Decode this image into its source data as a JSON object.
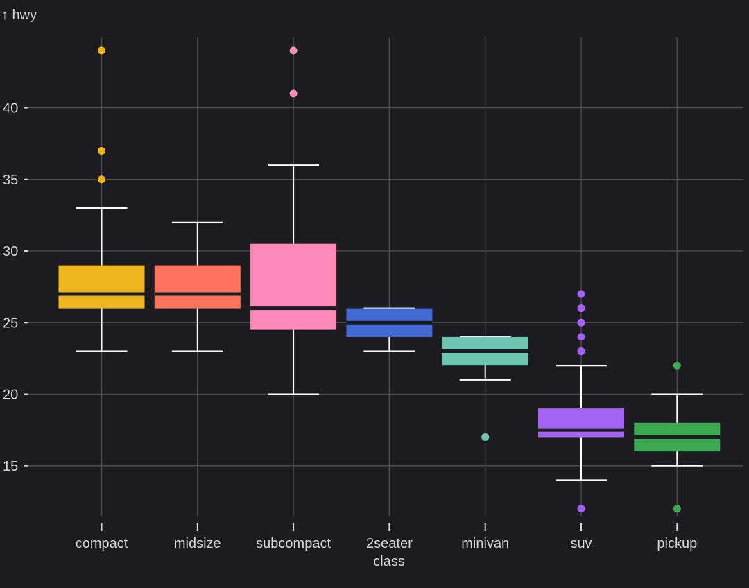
{
  "chart_data": {
    "type": "boxplot",
    "ylabel": "↑ hwy",
    "xlabel": "class",
    "ylim": [
      10.8,
      45
    ],
    "yticks": [
      15,
      20,
      25,
      30,
      35,
      40
    ],
    "grid": true,
    "categories": [
      {
        "name": "compact",
        "color": "#eeb51f",
        "whisker_low": 23,
        "q1": 26,
        "median": 27,
        "q3": 29,
        "whisker_high": 33,
        "outliers": [
          35,
          37,
          44
        ]
      },
      {
        "name": "midsize",
        "color": "#fe735d",
        "whisker_low": 23,
        "q1": 26,
        "median": 27,
        "q3": 29,
        "whisker_high": 32,
        "outliers": []
      },
      {
        "name": "subcompact",
        "color": "#ff8ab7",
        "whisker_low": 20,
        "q1": 24.5,
        "median": 26,
        "q3": 30.5,
        "whisker_high": 36,
        "outliers": [
          41,
          44
        ]
      },
      {
        "name": "2seater",
        "color": "#4269d0",
        "whisker_low": 23,
        "q1": 24,
        "median": 25,
        "q3": 26,
        "whisker_high": 26,
        "outliers": []
      },
      {
        "name": "minivan",
        "color": "#6cc5b0",
        "whisker_low": 21,
        "q1": 22,
        "median": 23,
        "q3": 24,
        "whisker_high": 24,
        "outliers": [
          17
        ]
      },
      {
        "name": "suv",
        "color": "#a463f2",
        "whisker_low": 14,
        "q1": 17,
        "median": 17.5,
        "q3": 19,
        "whisker_high": 22,
        "outliers": [
          12,
          23,
          24,
          25,
          26,
          27
        ]
      },
      {
        "name": "pickup",
        "color": "#3ca951",
        "whisker_low": 15,
        "q1": 16,
        "median": 17,
        "q3": 18,
        "whisker_high": 20,
        "outliers": [
          12,
          22
        ]
      }
    ]
  }
}
